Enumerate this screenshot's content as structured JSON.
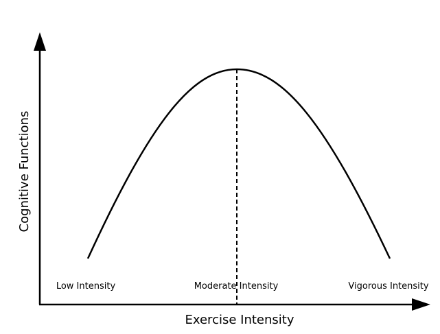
{
  "chart_data": {
    "type": "line",
    "title": "",
    "xlabel": "Exercise Intensity",
    "ylabel": "Cognitive Functions",
    "categories": [
      "Low Intensity",
      "Moderate Intensity",
      "Vigorous Intensity"
    ],
    "series": [
      {
        "values": [
          0.08,
          1.0,
          0.08
        ]
      }
    ],
    "peak_category": "Moderate Intensity",
    "grid": false,
    "legend": "none",
    "colors": {
      "curve": "#000000",
      "axes": "#000000",
      "peak_line": "#000000"
    }
  }
}
